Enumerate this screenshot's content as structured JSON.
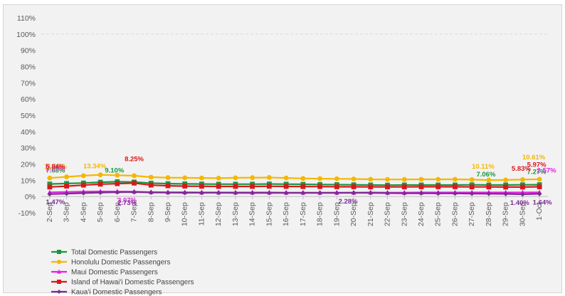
{
  "chart_data": {
    "type": "line",
    "title": "",
    "xlabel": "",
    "ylabel": "",
    "ylim": [
      -10,
      110
    ],
    "y_ticks": [
      "-10%",
      "0%",
      "10%",
      "20%",
      "30%",
      "40%",
      "50%",
      "60%",
      "70%",
      "80%",
      "90%",
      "100%",
      "110%"
    ],
    "y_tick_values": [
      -10,
      0,
      10,
      20,
      30,
      40,
      50,
      60,
      70,
      80,
      90,
      100,
      110
    ],
    "reference_line": {
      "value": 100,
      "style": "dashed"
    },
    "categories": [
      "2-Sep",
      "3-Sep",
      "4-Sep",
      "5-Sep",
      "6-Sep",
      "7-Sep",
      "8-Sep",
      "9-Sep",
      "10-Sep",
      "11-Sep",
      "12-Sep",
      "13-Sep",
      "14-Sep",
      "15-Sep",
      "16-Sep",
      "17-Sep",
      "18-Sep",
      "19-Sep",
      "20-Sep",
      "21-Sep",
      "22-Sep",
      "23-Sep",
      "24-Sep",
      "25-Sep",
      "26-Sep",
      "27-Sep",
      "28-Sep",
      "29-Sep",
      "30-Sep",
      "1-Oct"
    ],
    "legend_position": "bottom-left",
    "grid": false,
    "series": [
      {
        "name": "Total Domestic Passengers",
        "color": "#1a9641",
        "marker": "square",
        "values": [
          7.68,
          8.0,
          8.3,
          8.8,
          9.1,
          8.9,
          8.2,
          7.9,
          7.8,
          7.7,
          7.6,
          7.6,
          7.6,
          7.7,
          7.6,
          7.5,
          7.4,
          7.3,
          7.2,
          7.1,
          7.0,
          7.1,
          7.1,
          7.1,
          7.1,
          7.2,
          7.06,
          7.1,
          7.2,
          7.27
        ],
        "labels": [
          {
            "index": 0,
            "text": "7.68%"
          },
          {
            "index": 4,
            "text": "9.10%"
          },
          {
            "index": 26,
            "text": "7.06%"
          },
          {
            "index": 29,
            "text": "7.27%"
          }
        ]
      },
      {
        "name": "Honolulu Domestic Passengers",
        "color": "#f5b700",
        "marker": "circle",
        "values": [
          11.39,
          12.1,
          12.8,
          13.34,
          13.1,
          12.8,
          11.9,
          11.6,
          11.5,
          11.4,
          11.3,
          11.5,
          11.6,
          11.7,
          11.4,
          11.1,
          11.0,
          10.9,
          10.8,
          10.6,
          10.5,
          10.5,
          10.6,
          10.6,
          10.6,
          10.4,
          10.11,
          10.2,
          10.4,
          10.61
        ],
        "labels": [
          {
            "index": 0,
            "text": "11.39%"
          },
          {
            "index": 3,
            "text": "13.34%"
          },
          {
            "index": 26,
            "text": "10.11%"
          },
          {
            "index": 29,
            "text": "10.61%"
          }
        ]
      },
      {
        "name": "Maui Domestic Passengers",
        "color": "#e61ee6",
        "marker": "triangle",
        "values": [
          2.55,
          2.8,
          3.0,
          3.1,
          3.07,
          3.0,
          2.7,
          2.6,
          2.6,
          2.5,
          2.5,
          2.5,
          2.5,
          2.5,
          2.4,
          2.4,
          2.4,
          2.4,
          2.4,
          2.5,
          2.4,
          2.4,
          2.5,
          2.5,
          2.5,
          2.5,
          2.5,
          2.5,
          2.5,
          2.57
        ],
        "labels": [
          {
            "index": 0,
            "text": "2.55%"
          },
          {
            "index": 5,
            "text": "3.07%"
          },
          {
            "index": 29,
            "text": "2.57%"
          }
        ]
      },
      {
        "name": "Island of Hawai'i Domestic Passengers",
        "color": "#d7191c",
        "marker": "square",
        "values": [
          5.84,
          6.4,
          7.0,
          7.6,
          7.9,
          8.25,
          7.0,
          6.6,
          6.4,
          6.3,
          6.2,
          6.2,
          6.2,
          6.3,
          6.2,
          6.1,
          6.1,
          6.0,
          6.0,
          5.9,
          5.9,
          5.9,
          6.0,
          6.0,
          6.0,
          5.9,
          5.9,
          5.8,
          5.83,
          5.97
        ],
        "labels": [
          {
            "index": 0,
            "text": "5.84%"
          },
          {
            "index": 5,
            "text": "8.25%"
          },
          {
            "index": 28,
            "text": "5.83%"
          },
          {
            "index": 29,
            "text": "5.97%"
          }
        ]
      },
      {
        "name": "Kaua'i Domestic Passengers",
        "color": "#7b2c91",
        "marker": "diamond",
        "values": [
          1.47,
          1.8,
          2.1,
          2.4,
          2.6,
          2.73,
          2.5,
          2.4,
          2.3,
          2.3,
          2.3,
          2.2,
          2.2,
          2.2,
          2.2,
          2.2,
          2.2,
          2.2,
          2.28,
          2.2,
          2.1,
          2.0,
          2.0,
          1.9,
          1.9,
          1.8,
          1.7,
          1.6,
          1.4,
          1.64
        ],
        "labels": [
          {
            "index": 0,
            "text": "1.47%"
          },
          {
            "index": 5,
            "text": "2.73%"
          },
          {
            "index": 18,
            "text": "2.28%"
          },
          {
            "index": 28,
            "text": "1.40%"
          },
          {
            "index": 29,
            "text": "1.64%"
          }
        ]
      }
    ]
  }
}
